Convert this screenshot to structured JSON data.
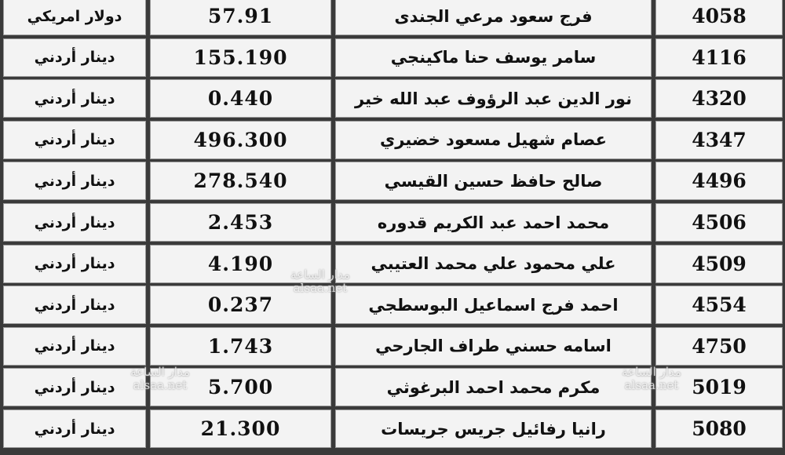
{
  "rows": [
    {
      "id": "4058",
      "name": "فرج سعود مرعي الجندى",
      "amount": "57.91",
      "currency": "دولار امريكي"
    },
    {
      "id": "4116",
      "name": "سامر يوسف حنا ماكينجي",
      "amount": "155.190",
      "currency": "دينار أردني"
    },
    {
      "id": "4320",
      "name": "نور الدين عبد الرؤوف عبد الله خير",
      "amount": "0.440",
      "currency": "دينار أردني"
    },
    {
      "id": "4347",
      "name": "عصام شهيل مسعود خضيري",
      "amount": "496.300",
      "currency": "دينار أردني"
    },
    {
      "id": "4496",
      "name": "صالح حافظ حسين القيسي",
      "amount": "278.540",
      "currency": "دينار أردني"
    },
    {
      "id": "4506",
      "name": "محمد احمد عبد الكريم قدوره",
      "amount": "2.453",
      "currency": "دينار أردني"
    },
    {
      "id": "4509",
      "name": "علي محمود علي محمد العتيبي",
      "amount": "4.190",
      "currency": "دينار أردني"
    },
    {
      "id": "4554",
      "name": "احمد فرج اسماعيل البوسطجي",
      "amount": "0.237",
      "currency": "دينار أردني"
    },
    {
      "id": "4750",
      "name": "اسامه حسني طراف الجارحي",
      "amount": "1.743",
      "currency": "دينار أردني"
    },
    {
      "id": "5019",
      "name": "مكرم محمد احمد البرغوثي",
      "amount": "5.700",
      "currency": "دينار أردني"
    },
    {
      "id": "5080",
      "name": "رانيا رفائيل جريس جريسات",
      "amount": "21.300",
      "currency": "دينار أردني"
    }
  ],
  "watermark": {
    "arabic": "مدار الساعة",
    "site": "alsaa.net"
  }
}
